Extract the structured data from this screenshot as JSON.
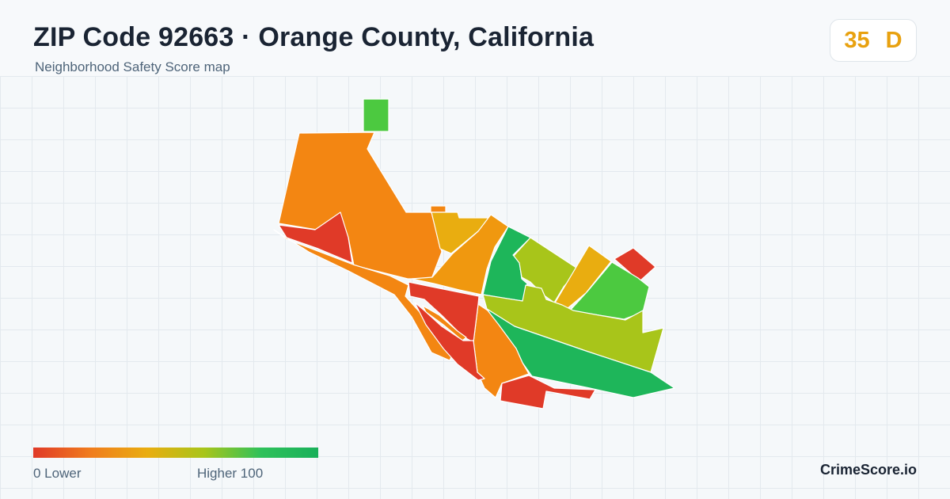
{
  "header": {
    "title": "ZIP Code 92663 · Orange County, California",
    "subtitle": "Neighborhood Safety Score map"
  },
  "score": {
    "value": "35",
    "grade": "D",
    "color": "#e8a10f"
  },
  "legend": {
    "low_label": "0  Lower",
    "high_label": "Higher  100",
    "colors": [
      "#e03a28",
      "#f07c1d",
      "#e9ad10",
      "#a8c51a",
      "#2ec15a",
      "#19b05a"
    ]
  },
  "brand": {
    "name": "CrimeScore.io"
  },
  "regions": [
    {
      "id": "north-parcel",
      "color": "#4cc940"
    },
    {
      "id": "northwest-large",
      "color": "#f38612"
    },
    {
      "id": "west-pocket",
      "color": "#e03a28"
    },
    {
      "id": "small-notch",
      "color": "#f38612"
    },
    {
      "id": "north-central",
      "color": "#e9ad10"
    },
    {
      "id": "peninsula-strip",
      "color": "#f38612"
    },
    {
      "id": "central-wedge",
      "color": "#f0980f"
    },
    {
      "id": "central-green",
      "color": "#1eb65a"
    },
    {
      "id": "east-lime",
      "color": "#a8c51a"
    },
    {
      "id": "east-yellow",
      "color": "#e9ad10"
    },
    {
      "id": "east-red-square",
      "color": "#e03a28"
    },
    {
      "id": "east-green",
      "color": "#4cc940"
    },
    {
      "id": "east-lime-large",
      "color": "#a8c51a"
    },
    {
      "id": "southeast-green",
      "color": "#1eb65a"
    },
    {
      "id": "south-orange",
      "color": "#f38612"
    },
    {
      "id": "central-red",
      "color": "#e03a28"
    },
    {
      "id": "inner-orange",
      "color": "#f38612"
    },
    {
      "id": "south-red",
      "color": "#e03a28"
    },
    {
      "id": "south-strip-red",
      "color": "#e03a28"
    }
  ]
}
